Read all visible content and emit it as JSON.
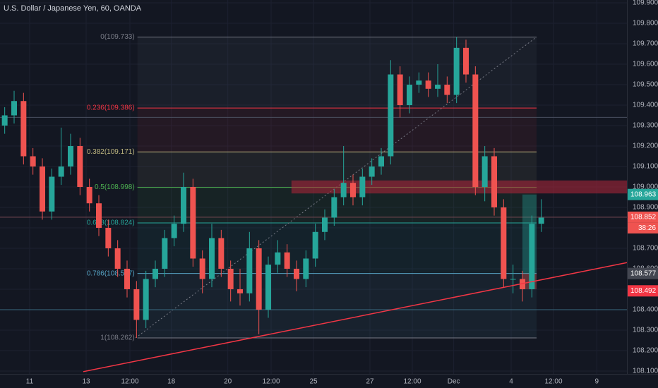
{
  "chart_data": {
    "type": "candlestick",
    "title": "U.S. Dollar / Japanese Yen, 60, OANDA",
    "xlim": [
      0,
      66.6
    ],
    "ylim": [
      108.086,
      109.914
    ],
    "xticks": [
      {
        "value": 3.15,
        "label": "11"
      },
      {
        "value": 9.15,
        "label": "13"
      },
      {
        "value": 13.8,
        "label": "12:00"
      },
      {
        "value": 18.2,
        "label": "18"
      },
      {
        "value": 24.2,
        "label": "20"
      },
      {
        "value": 28.8,
        "label": "12:00"
      },
      {
        "value": 33.3,
        "label": "25"
      },
      {
        "value": 39.3,
        "label": "27"
      },
      {
        "value": 43.8,
        "label": "12:00"
      },
      {
        "value": 48.2,
        "label": "Dec"
      },
      {
        "value": 54.3,
        "label": "4"
      },
      {
        "value": 58.8,
        "label": "12:00"
      },
      {
        "value": 63.4,
        "label": "9"
      }
    ],
    "yticks": [
      {
        "value": 109.9,
        "label": "109.900"
      },
      {
        "value": 109.8,
        "label": "109.800"
      },
      {
        "value": 109.7,
        "label": "109.700"
      },
      {
        "value": 109.6,
        "label": "109.600"
      },
      {
        "value": 109.5,
        "label": "109.500"
      },
      {
        "value": 109.4,
        "label": "109.400"
      },
      {
        "value": 109.3,
        "label": "109.300"
      },
      {
        "value": 109.2,
        "label": "109.200"
      },
      {
        "value": 109.1,
        "label": "109.100"
      },
      {
        "value": 109.0,
        "label": "109.000"
      },
      {
        "value": 108.9,
        "label": "108.900"
      },
      {
        "value": 108.8,
        "label": "108.800"
      },
      {
        "value": 108.7,
        "label": "108.700"
      },
      {
        "value": 108.6,
        "label": "108.600"
      },
      {
        "value": 108.5,
        "label": "108.500"
      },
      {
        "value": 108.4,
        "label": "108.400"
      },
      {
        "value": 108.3,
        "label": "108.300"
      },
      {
        "value": 108.2,
        "label": "108.200"
      },
      {
        "value": 108.1,
        "label": "108.100"
      }
    ],
    "up_color": "#26a69a",
    "down_color": "#ef5350",
    "open": [
      109.3,
      109.35,
      109.42,
      109.15,
      109.1,
      108.88,
      109.05,
      109.1,
      109.2,
      109.0,
      108.92,
      108.8,
      108.7,
      108.6,
      108.5,
      108.35,
      108.55,
      108.6,
      108.75,
      108.82,
      109.0,
      108.65,
      108.55,
      108.75,
      108.6,
      108.5,
      108.48,
      108.7,
      108.4,
      108.62,
      108.68,
      108.6,
      108.55,
      108.65,
      108.78,
      108.85,
      108.95,
      109.02,
      108.95,
      109.05,
      109.1,
      109.15,
      109.55,
      109.4,
      109.5,
      109.52,
      109.48,
      109.5,
      109.45,
      109.68,
      109.55,
      109.0,
      109.15,
      108.9,
      108.55,
      108.55,
      108.5,
      108.82
    ],
    "high": [
      109.39,
      109.47,
      109.46,
      109.19,
      109.14,
      109.09,
      109.29,
      109.26,
      109.24,
      109.04,
      108.96,
      108.84,
      108.74,
      108.64,
      108.54,
      108.59,
      108.64,
      108.79,
      108.86,
      109.07,
      109.04,
      108.69,
      108.82,
      108.79,
      108.64,
      108.6,
      108.78,
      108.74,
      108.66,
      108.74,
      108.72,
      108.64,
      108.69,
      108.82,
      108.89,
      108.99,
      109.2,
      109.06,
      109.09,
      109.14,
      109.19,
      109.62,
      109.59,
      109.54,
      109.56,
      109.56,
      109.6,
      109.54,
      109.733,
      109.72,
      109.59,
      109.2,
      109.19,
      108.94,
      108.62,
      108.59,
      108.86,
      108.94
    ],
    "low": [
      109.26,
      109.31,
      109.11,
      109.06,
      108.84,
      108.84,
      109.01,
      109.06,
      108.96,
      108.88,
      108.76,
      108.66,
      108.56,
      108.46,
      108.262,
      108.31,
      108.51,
      108.56,
      108.71,
      108.78,
      108.61,
      108.48,
      108.51,
      108.56,
      108.44,
      108.42,
      108.44,
      108.28,
      108.36,
      108.58,
      108.56,
      108.49,
      108.51,
      108.61,
      108.74,
      108.81,
      108.91,
      108.91,
      108.91,
      109.01,
      109.06,
      109.11,
      109.34,
      109.36,
      109.46,
      109.44,
      109.44,
      109.41,
      109.41,
      109.51,
      108.96,
      108.93,
      108.86,
      108.51,
      108.48,
      108.44,
      108.46,
      108.78
    ],
    "close": [
      109.35,
      109.42,
      109.15,
      109.1,
      108.88,
      109.05,
      109.1,
      109.2,
      109.0,
      108.92,
      108.8,
      108.7,
      108.6,
      108.5,
      108.35,
      108.55,
      108.6,
      108.75,
      108.82,
      109.0,
      108.65,
      108.55,
      108.75,
      108.6,
      108.5,
      108.48,
      108.7,
      108.4,
      108.62,
      108.68,
      108.6,
      108.55,
      108.65,
      108.78,
      108.85,
      108.95,
      109.02,
      108.95,
      109.05,
      109.1,
      109.15,
      109.55,
      109.4,
      109.5,
      109.52,
      109.48,
      109.5,
      109.45,
      109.68,
      109.55,
      109.0,
      109.15,
      108.9,
      108.55,
      108.55,
      108.5,
      108.82,
      108.85
    ],
    "fib_range": [
      14.6,
      57
    ],
    "fib_levels": [
      {
        "label": "0(109.733)",
        "value": 109.733,
        "color": "#787b86"
      },
      {
        "label": "0.236(109.386)",
        "value": 109.386,
        "color": "#f23645"
      },
      {
        "label": "0.382(109.171)",
        "value": 109.171,
        "color": "#c0b880"
      },
      {
        "label": "0.5(108.998)",
        "value": 108.998,
        "color": "#4caf50"
      },
      {
        "label": "0.618(108.824)",
        "value": 108.824,
        "color": "#26a69a"
      },
      {
        "label": "0.786(108.577)",
        "value": 108.577,
        "color": "#56a3c4"
      },
      {
        "label": "1(108.262)",
        "value": 108.262,
        "color": "#787b86"
      }
    ],
    "fib_diagonal": {
      "x": [
        14.4,
        57
      ],
      "y": [
        108.262,
        109.733
      ]
    },
    "h_lines": [
      {
        "value": 109.34,
        "color": "#4a5060"
      },
      {
        "value": 108.4,
        "color": "#3a6a80"
      },
      {
        "value": 108.852,
        "color": "#7a4a55"
      }
    ],
    "trend_line": {
      "x": [
        8.85,
        66.6
      ],
      "y": [
        108.097,
        108.63
      ],
      "color": "#f23645"
    },
    "zone": {
      "x": [
        31,
        66.6
      ],
      "y": [
        108.97,
        109.03
      ],
      "color": "#b2263a"
    },
    "position": {
      "x": [
        55.5,
        57
      ],
      "entry": 108.577,
      "target": 108.963,
      "stop": 108.5
    },
    "price_tags": [
      {
        "value": 108.963,
        "color": "#26a69a"
      },
      {
        "value": 108.852,
        "color": "#ef5350"
      },
      {
        "value": 108.577,
        "color": "#434651"
      },
      {
        "value": 108.492,
        "color": "#f23645"
      }
    ],
    "countdown": "38:26"
  }
}
